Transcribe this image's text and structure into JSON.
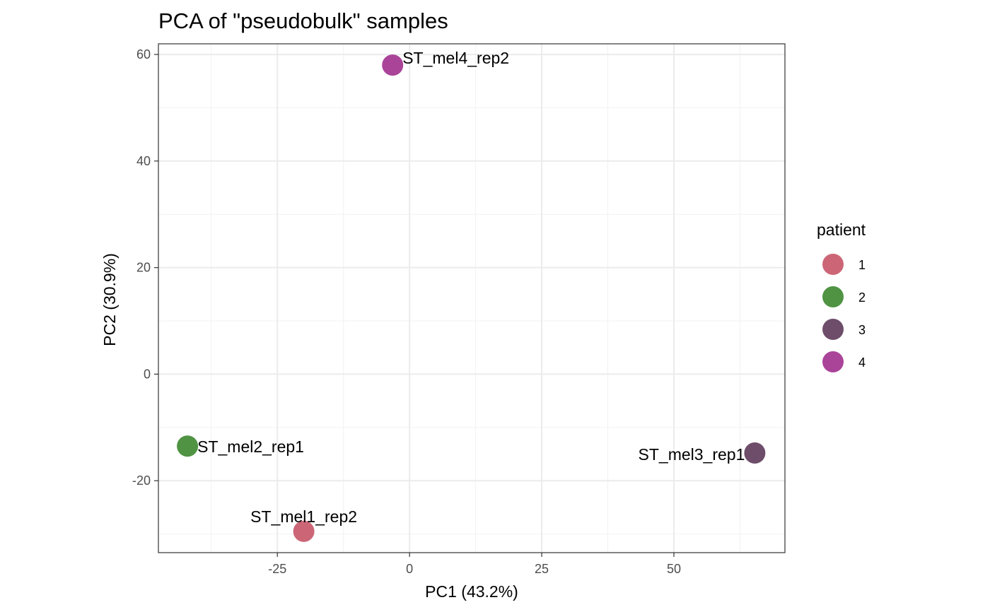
{
  "chart_data": {
    "type": "scatter",
    "title": "PCA of \"pseudobulk\" samples",
    "xlabel": "PC1 (43.2%)",
    "ylabel": "PC2 (30.9%)",
    "xlim": [
      -47.5,
      71.0
    ],
    "ylim": [
      -33.5,
      62.0
    ],
    "x_ticks": [
      -25,
      0,
      25,
      50
    ],
    "x_tick_labels": [
      "-25",
      "0",
      "25",
      "50"
    ],
    "y_ticks": [
      -20,
      0,
      20,
      40,
      60
    ],
    "y_tick_labels": [
      "-20",
      "0",
      "20",
      "40",
      "60"
    ],
    "grid": true,
    "legend": {
      "title": "patient",
      "position": "right",
      "entries": [
        {
          "label": "1",
          "color": "#CC6677"
        },
        {
          "label": "2",
          "color": "#4F9343"
        },
        {
          "label": "3",
          "color": "#6E4D6A"
        },
        {
          "label": "4",
          "color": "#AA4499"
        }
      ]
    },
    "points": [
      {
        "label": "ST_mel1_rep2",
        "patient": "1",
        "x": -20.0,
        "y": -29.5,
        "label_side": "above"
      },
      {
        "label": "ST_mel2_rep1",
        "patient": "2",
        "x": -42.0,
        "y": -13.5,
        "label_side": "right"
      },
      {
        "label": "ST_mel3_rep1",
        "patient": "3",
        "x": 65.3,
        "y": -14.8,
        "label_side": "left"
      },
      {
        "label": "ST_mel4_rep2",
        "patient": "4",
        "x": -3.2,
        "y": 58.0,
        "label_side": "right"
      }
    ]
  }
}
